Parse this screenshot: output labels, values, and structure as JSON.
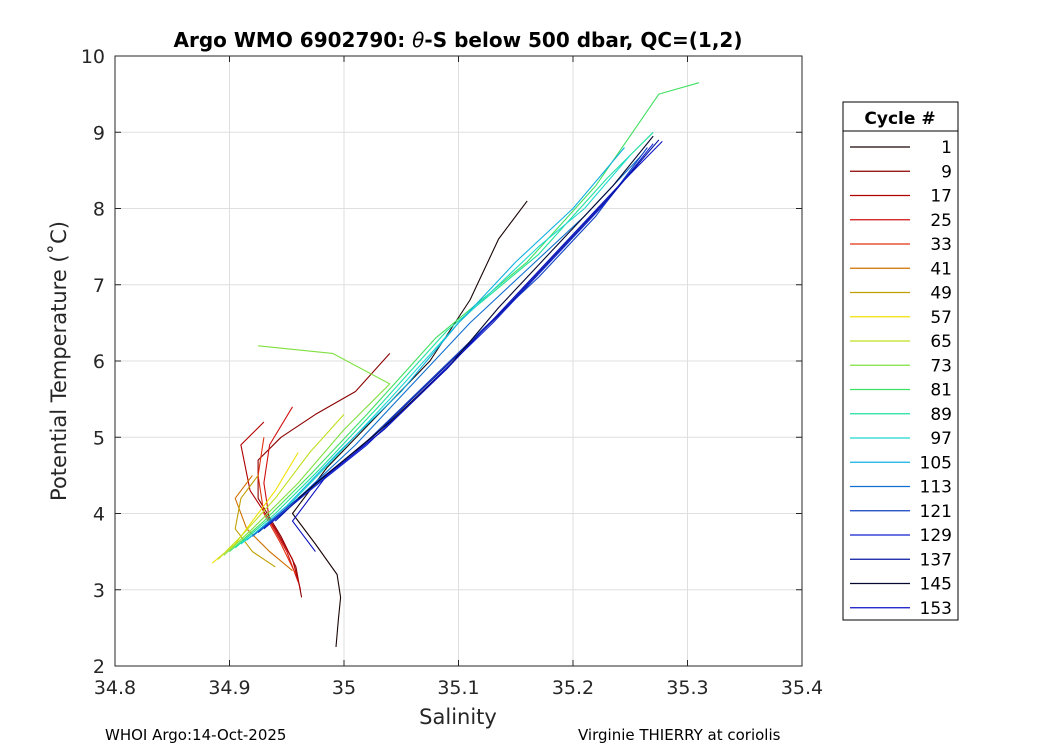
{
  "chart_data": {
    "type": "line",
    "title_prefix": "Argo WMO 6902790: ",
    "title_theta": "θ",
    "title_suffix": "-S below 500 dbar,  QC=(1,2)",
    "xlabel": "Salinity",
    "ylabel": "Potential Temperature (˚C)",
    "xlim": [
      34.8,
      35.4
    ],
    "ylim": [
      2,
      10
    ],
    "xticks": [
      "34.8",
      "34.9",
      "35",
      "35.1",
      "35.2",
      "35.3",
      "35.4"
    ],
    "yticks": [
      "2",
      "3",
      "4",
      "5",
      "6",
      "7",
      "8",
      "9",
      "10"
    ],
    "grid": true,
    "legend": {
      "title": "Cycle #",
      "placement": "outside-right",
      "entries": [
        {
          "label": "1",
          "color": "#1a0505"
        },
        {
          "label": "9",
          "color": "#8b0000"
        },
        {
          "label": "17",
          "color": "#b00000"
        },
        {
          "label": "25",
          "color": "#d01010"
        },
        {
          "label": "33",
          "color": "#e03010"
        },
        {
          "label": "41",
          "color": "#d07000"
        },
        {
          "label": "49",
          "color": "#c0a000"
        },
        {
          "label": "57",
          "color": "#f0e000"
        },
        {
          "label": "65",
          "color": "#c0e020"
        },
        {
          "label": "73",
          "color": "#80e040"
        },
        {
          "label": "81",
          "color": "#40e060"
        },
        {
          "label": "89",
          "color": "#20e0a0"
        },
        {
          "label": "97",
          "color": "#20d8d0"
        },
        {
          "label": "105",
          "color": "#10b0e0"
        },
        {
          "label": "113",
          "color": "#1070d0"
        },
        {
          "label": "121",
          "color": "#1040c0"
        },
        {
          "label": "129",
          "color": "#1020d0"
        },
        {
          "label": "137",
          "color": "#0818a0"
        },
        {
          "label": "145",
          "color": "#050830"
        },
        {
          "label": "153",
          "color": "#0a10c0"
        }
      ]
    },
    "series": [
      {
        "name": "1",
        "color": "#1a0505",
        "points": [
          [
            34.993,
            2.25
          ],
          [
            34.995,
            2.6
          ],
          [
            34.997,
            2.9
          ],
          [
            34.994,
            3.2
          ],
          [
            34.975,
            3.6
          ],
          [
            34.955,
            4.0
          ],
          [
            34.985,
            4.6
          ],
          [
            35.03,
            5.3
          ],
          [
            35.075,
            6.0
          ],
          [
            35.11,
            6.8
          ],
          [
            35.135,
            7.6
          ],
          [
            35.16,
            8.1
          ]
        ]
      },
      {
        "name": "9",
        "color": "#8b0000",
        "points": [
          [
            34.963,
            2.9
          ],
          [
            34.958,
            3.3
          ],
          [
            34.945,
            3.7
          ],
          [
            34.925,
            4.2
          ],
          [
            34.925,
            4.7
          ],
          [
            34.945,
            5.0
          ],
          [
            34.975,
            5.3
          ],
          [
            35.01,
            5.6
          ],
          [
            35.04,
            6.1
          ]
        ]
      },
      {
        "name": "17",
        "color": "#b00000",
        "points": [
          [
            34.962,
            3.0
          ],
          [
            34.955,
            3.4
          ],
          [
            34.94,
            3.8
          ],
          [
            34.918,
            4.3
          ],
          [
            34.91,
            4.9
          ],
          [
            34.93,
            5.2
          ]
        ]
      },
      {
        "name": "25",
        "color": "#d01010",
        "points": [
          [
            34.96,
            3.1
          ],
          [
            34.95,
            3.5
          ],
          [
            34.935,
            3.9
          ],
          [
            34.93,
            4.4
          ],
          [
            34.935,
            4.9
          ],
          [
            34.955,
            5.4
          ]
        ]
      },
      {
        "name": "33",
        "color": "#e03010",
        "points": [
          [
            34.958,
            3.2
          ],
          [
            34.945,
            3.6
          ],
          [
            34.93,
            4.0
          ],
          [
            34.925,
            4.5
          ],
          [
            34.93,
            5.0
          ]
        ]
      },
      {
        "name": "41",
        "color": "#d07000",
        "points": [
          [
            34.955,
            3.25
          ],
          [
            34.935,
            3.5
          ],
          [
            34.915,
            3.8
          ],
          [
            34.905,
            4.2
          ],
          [
            34.92,
            4.5
          ]
        ]
      },
      {
        "name": "49",
        "color": "#c0a000",
        "points": [
          [
            34.94,
            3.3
          ],
          [
            34.92,
            3.5
          ],
          [
            34.905,
            3.8
          ],
          [
            34.91,
            4.2
          ],
          [
            34.925,
            4.5
          ]
        ]
      },
      {
        "name": "57",
        "color": "#f0e000",
        "points": [
          [
            34.885,
            3.35
          ],
          [
            34.905,
            3.6
          ],
          [
            34.92,
            3.9
          ],
          [
            34.94,
            4.3
          ],
          [
            34.96,
            4.8
          ]
        ]
      },
      {
        "name": "65",
        "color": "#c0e020",
        "points": [
          [
            34.89,
            3.4
          ],
          [
            34.91,
            3.7
          ],
          [
            34.94,
            4.2
          ],
          [
            34.97,
            4.8
          ],
          [
            35.0,
            5.3
          ]
        ]
      },
      {
        "name": "73",
        "color": "#80e040",
        "points": [
          [
            34.895,
            3.45
          ],
          [
            34.92,
            3.8
          ],
          [
            34.96,
            4.4
          ],
          [
            35.0,
            5.1
          ],
          [
            35.04,
            5.7
          ],
          [
            34.99,
            6.1
          ],
          [
            34.925,
            6.2
          ]
        ]
      },
      {
        "name": "81",
        "color": "#40e060",
        "points": [
          [
            34.9,
            3.5
          ],
          [
            34.93,
            3.9
          ],
          [
            34.97,
            4.5
          ],
          [
            35.02,
            5.3
          ],
          [
            35.08,
            6.3
          ],
          [
            35.16,
            7.3
          ],
          [
            35.22,
            8.3
          ],
          [
            35.275,
            9.5
          ],
          [
            35.31,
            9.65
          ]
        ]
      },
      {
        "name": "89",
        "color": "#20e0a0",
        "points": [
          [
            34.905,
            3.55
          ],
          [
            34.94,
            4.0
          ],
          [
            34.98,
            4.6
          ],
          [
            35.03,
            5.4
          ],
          [
            35.09,
            6.4
          ],
          [
            35.17,
            7.4
          ],
          [
            35.23,
            8.4
          ],
          [
            35.27,
            9.0
          ]
        ]
      },
      {
        "name": "97",
        "color": "#20d8d0",
        "points": [
          [
            34.91,
            3.6
          ],
          [
            34.945,
            4.0
          ],
          [
            34.99,
            4.7
          ],
          [
            35.04,
            5.5
          ],
          [
            35.1,
            6.5
          ],
          [
            35.17,
            7.5
          ],
          [
            35.21,
            8.0
          ],
          [
            35.25,
            8.7
          ]
        ]
      },
      {
        "name": "105",
        "color": "#10b0e0",
        "points": [
          [
            34.915,
            3.65
          ],
          [
            34.95,
            4.1
          ],
          [
            34.995,
            4.8
          ],
          [
            35.05,
            5.6
          ],
          [
            35.1,
            6.5
          ],
          [
            35.15,
            7.3
          ],
          [
            35.2,
            8.0
          ],
          [
            35.245,
            8.8
          ]
        ]
      },
      {
        "name": "113",
        "color": "#1070d0",
        "points": [
          [
            34.92,
            3.7
          ],
          [
            34.96,
            4.2
          ],
          [
            35.01,
            4.9
          ],
          [
            35.06,
            5.7
          ],
          [
            35.11,
            6.5
          ],
          [
            35.16,
            7.2
          ],
          [
            35.21,
            7.9
          ],
          [
            35.26,
            8.7
          ]
        ]
      },
      {
        "name": "121",
        "color": "#1040c0",
        "points": [
          [
            34.925,
            3.75
          ],
          [
            34.96,
            4.2
          ],
          [
            35.01,
            4.8
          ],
          [
            35.065,
            5.6
          ],
          [
            35.12,
            6.4
          ],
          [
            35.17,
            7.1
          ],
          [
            35.22,
            7.9
          ],
          [
            35.265,
            8.8
          ]
        ]
      },
      {
        "name": "129",
        "color": "#1020d0",
        "points": [
          [
            34.93,
            3.8
          ],
          [
            34.97,
            4.3
          ],
          [
            35.02,
            4.9
          ],
          [
            35.075,
            5.7
          ],
          [
            35.13,
            6.5
          ],
          [
            35.18,
            7.3
          ],
          [
            35.23,
            8.1
          ],
          [
            35.27,
            8.85
          ]
        ]
      },
      {
        "name": "137",
        "color": "#0818a0",
        "points": [
          [
            34.94,
            3.9
          ],
          [
            34.975,
            4.4
          ],
          [
            35.025,
            5.0
          ],
          [
            35.08,
            5.8
          ],
          [
            35.135,
            6.6
          ],
          [
            35.185,
            7.4
          ],
          [
            35.235,
            8.2
          ],
          [
            35.275,
            8.9
          ]
        ]
      },
      {
        "name": "145",
        "color": "#050830",
        "points": [
          [
            34.96,
            4.2
          ],
          [
            35.0,
            4.7
          ],
          [
            35.04,
            5.2
          ],
          [
            35.09,
            5.9
          ],
          [
            35.135,
            6.7
          ],
          [
            35.185,
            7.5
          ],
          [
            35.235,
            8.3
          ],
          [
            35.27,
            8.95
          ]
        ]
      },
      {
        "name": "153",
        "color": "#0a10c0",
        "points": [
          [
            34.975,
            3.5
          ],
          [
            34.955,
            3.9
          ],
          [
            34.985,
            4.5
          ],
          [
            35.035,
            5.1
          ],
          [
            35.09,
            5.9
          ],
          [
            35.14,
            6.7
          ],
          [
            35.19,
            7.5
          ],
          [
            35.24,
            8.3
          ],
          [
            35.278,
            8.88
          ]
        ]
      }
    ]
  },
  "footer": {
    "left": "WHOI Argo:14-Oct-2025",
    "right": "Virginie THIERRY at coriolis"
  }
}
